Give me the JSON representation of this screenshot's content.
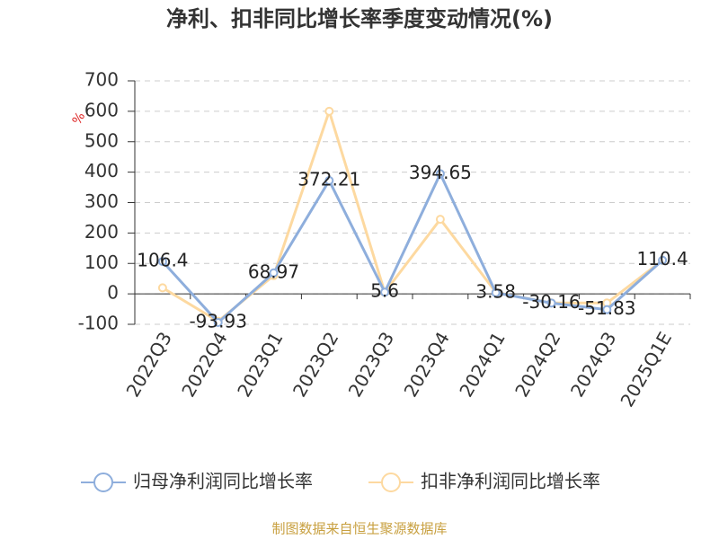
{
  "chart_data": {
    "type": "line",
    "title": "净利、扣非同比增长率季度变动情况(%)",
    "y_label": "%",
    "categories": [
      "2022Q3",
      "2022Q4",
      "2023Q1",
      "2023Q2",
      "2023Q3",
      "2023Q4",
      "2024Q1",
      "2024Q2",
      "2024Q3",
      "2025Q1E"
    ],
    "series": [
      {
        "name": "归母净利润同比增长率",
        "color": "#8eaedc",
        "values": [
          106.4,
          -93.93,
          68.97,
          372.21,
          5.6,
          394.65,
          3.58,
          -30.16,
          -51.83,
          110.4
        ]
      },
      {
        "name": "扣非净利润同比增长率",
        "color": "#fdd9a0",
        "values": [
          20,
          -90,
          60,
          600,
          5,
          245,
          5,
          -30,
          -30,
          110
        ]
      }
    ],
    "ylim": [
      -100,
      700
    ],
    "yticks": [
      -100,
      0,
      100,
      200,
      300,
      400,
      500,
      600,
      700
    ],
    "grid": true,
    "source": "制图数据来自恒生聚源数据库"
  }
}
